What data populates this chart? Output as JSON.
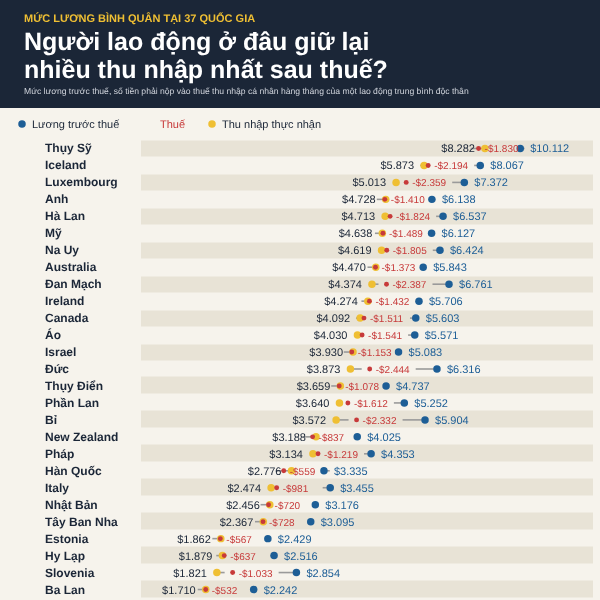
{
  "chart_data": {
    "type": "other",
    "subtitle": "MỨC LƯƠNG BÌNH QUÂN TẠI 37 QUỐC GIA",
    "title": "Người lao động ở đâu giữ lại nhiều thu nhập nhất sau thuế?",
    "annotations": [
      "Mức lương trước thuế, số tiền phải nộp vào thuế thu nhập cá nhân hàng tháng của một lao động trung bình độc thân"
    ],
    "legend": "top left",
    "data_labels": true,
    "categories": [
      "Thụy Sỹ",
      "Iceland",
      "Luxembourg",
      "Anh",
      "Hà Lan",
      "Mỹ",
      "Na Uy",
      "Australia",
      "Đan Mạch",
      "Ireland",
      "Canada",
      "Áo",
      "Israel",
      "Đức",
      "Thụy Điển",
      "Phần Lan",
      "Bỉ",
      "New Zealand",
      "Pháp",
      "Hàn Quốc",
      "Italy",
      "Nhật Bản",
      "Tây Ban Nha",
      "Estonia",
      "Hy Lạp",
      "Slovenia",
      "Ba Lan"
    ],
    "series": [
      {
        "name": "Lương trước thuế",
        "color": "#1d5e96",
        "marker": "circle",
        "values": [
          10112,
          8067,
          7372,
          6138,
          6537,
          6127,
          6424,
          5843,
          6761,
          5706,
          5603,
          5571,
          5083,
          6316,
          4737,
          5252,
          5904,
          4025,
          4353,
          3335,
          3455,
          3176,
          3095,
          2429,
          2516,
          2854,
          2242
        ],
        "value_labels": [
          "$10.112",
          "$8.067",
          "$7.372",
          "$6.138",
          "$6.537",
          "$6.127",
          "$6.424",
          "$5.843",
          "$6.761",
          "$5.706",
          "$5.603",
          "$5.571",
          "$5.083",
          "$6.316",
          "$4.737",
          "$5.252",
          "$5.904",
          "$4.025",
          "$4.353",
          "$3.335",
          "$3.455",
          "$3.176",
          "$3.095",
          "$2.429",
          "$2.516",
          "$2.854",
          "$2.242"
        ]
      },
      {
        "name": "Thuế",
        "color": "#c73a3a",
        "marker": "circle",
        "values": [
          -1830,
          -2194,
          -2359,
          -1410,
          -1824,
          -1489,
          -1805,
          -1373,
          -2387,
          -1432,
          -1511,
          -1541,
          -1153,
          -2444,
          -1078,
          -1612,
          -2332,
          -837,
          -1219,
          -559,
          -981,
          -720,
          -728,
          -567,
          -637,
          -1033,
          -532
        ],
        "value_labels": [
          "-$1.830",
          "-$2.194",
          "-$2.359",
          "-$1.410",
          "-$1.824",
          "-$1.489",
          "-$1.805",
          "-$1.373",
          "-$2.387",
          "-$1.432",
          "-$1.511",
          "-$1.541",
          "-$1.153",
          "-$2.444",
          "-$1.078",
          "-$1.612",
          "-$2.332",
          "-$837",
          "-$1.219",
          "-$559",
          "-$981",
          "-$720",
          "-$728",
          "-$567",
          "-$637",
          "-$1.033",
          "-$532"
        ]
      },
      {
        "name": "Thu nhập thực nhận",
        "color": "#efbf33",
        "marker": "circle",
        "values": [
          8282,
          5873,
          5013,
          4728,
          4713,
          4638,
          4619,
          4470,
          4374,
          4274,
          4092,
          4030,
          3930,
          3873,
          3659,
          3640,
          3572,
          3188,
          3134,
          2776,
          2474,
          2456,
          2367,
          1862,
          1879,
          1821,
          1710
        ],
        "value_labels": [
          "$8.282",
          "$5.873",
          "$5.013",
          "$4.728",
          "$4.713",
          "$4.638",
          "$4.619",
          "$4.470",
          "$4.374",
          "$4.274",
          "$4.092",
          "$4.030",
          "$3.930",
          "$3.873",
          "$3.659",
          "$3.640",
          "$3.572",
          "$3.188",
          "$3.134",
          "$2.776",
          "$2.474",
          "$2.456",
          "$2.367",
          "$1.862",
          "$1.879",
          "$1.821",
          "$1.710"
        ]
      }
    ]
  }
}
